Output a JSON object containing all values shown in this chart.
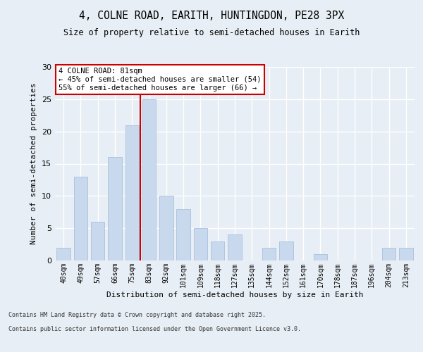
{
  "title_line1": "4, COLNE ROAD, EARITH, HUNTINGDON, PE28 3PX",
  "title_line2": "Size of property relative to semi-detached houses in Earith",
  "xlabel": "Distribution of semi-detached houses by size in Earith",
  "ylabel": "Number of semi-detached properties",
  "categories": [
    "40sqm",
    "49sqm",
    "57sqm",
    "66sqm",
    "75sqm",
    "83sqm",
    "92sqm",
    "101sqm",
    "109sqm",
    "118sqm",
    "127sqm",
    "135sqm",
    "144sqm",
    "152sqm",
    "161sqm",
    "170sqm",
    "178sqm",
    "187sqm",
    "196sqm",
    "204sqm",
    "213sqm"
  ],
  "values": [
    2,
    13,
    6,
    16,
    21,
    25,
    10,
    8,
    5,
    3,
    4,
    0,
    2,
    3,
    0,
    1,
    0,
    0,
    0,
    2,
    2
  ],
  "bar_color": "#c9d9ed",
  "bar_edge_color": "#a0b8d8",
  "property_bin_index": 5,
  "annotation_title": "4 COLNE ROAD: 81sqm",
  "annotation_line2": "← 45% of semi-detached houses are smaller (54)",
  "annotation_line3": "55% of semi-detached houses are larger (66) →",
  "vline_color": "#cc0000",
  "annotation_box_edge": "#cc0000",
  "ylim": [
    0,
    30
  ],
  "yticks": [
    0,
    5,
    10,
    15,
    20,
    25,
    30
  ],
  "background_color": "#e8eef5",
  "grid_color": "#ffffff",
  "footer_line1": "Contains HM Land Registry data © Crown copyright and database right 2025.",
  "footer_line2": "Contains public sector information licensed under the Open Government Licence v3.0."
}
